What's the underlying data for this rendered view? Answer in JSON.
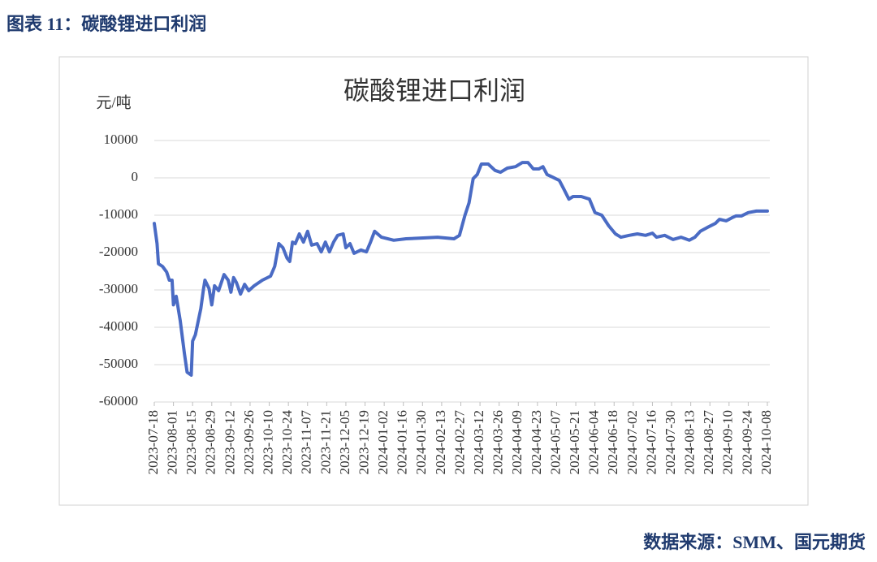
{
  "header": {
    "title": "图表 11：碳酸锂进口利润"
  },
  "chart_data": {
    "type": "line",
    "title": "碳酸锂进口利润",
    "y_label": "元/吨",
    "ylim": [
      -60000,
      10000
    ],
    "yticks": [
      10000,
      0,
      -10000,
      -20000,
      -30000,
      -40000,
      -50000,
      -60000
    ],
    "grid": true,
    "xlim": [
      "2023-07-18",
      "2024-10-08"
    ],
    "xticks": [
      "2023-07-18",
      "2023-08-01",
      "2023-08-15",
      "2023-08-29",
      "2023-09-12",
      "2023-09-26",
      "2023-10-10",
      "2023-10-24",
      "2023-11-07",
      "2023-11-21",
      "2023-12-05",
      "2023-12-19",
      "2024-01-02",
      "2024-01-16",
      "2024-01-30",
      "2024-02-13",
      "2024-02-27",
      "2024-03-12",
      "2024-03-26",
      "2024-04-09",
      "2024-04-23",
      "2024-05-07",
      "2024-05-21",
      "2024-06-04",
      "2024-06-18",
      "2024-07-02",
      "2024-07-16",
      "2024-07-30",
      "2024-08-13",
      "2024-08-27",
      "2024-09-10",
      "2024-09-24",
      "2024-10-08"
    ],
    "x": [
      "2023-07-18",
      "2023-07-20",
      "2023-07-21",
      "2023-07-24",
      "2023-07-27",
      "2023-07-29",
      "2023-07-31",
      "2023-08-01",
      "2023-08-03",
      "2023-08-06",
      "2023-08-09",
      "2023-08-11",
      "2023-08-14",
      "2023-08-15",
      "2023-08-17",
      "2023-08-21",
      "2023-08-23",
      "2023-08-24",
      "2023-08-27",
      "2023-08-29",
      "2023-08-31",
      "2023-09-03",
      "2023-09-05",
      "2023-09-07",
      "2023-09-10",
      "2023-09-12",
      "2023-09-14",
      "2023-09-16",
      "2023-09-19",
      "2023-09-22",
      "2023-09-25",
      "2023-09-29",
      "2023-10-05",
      "2023-10-11",
      "2023-10-14",
      "2023-10-17",
      "2023-10-20",
      "2023-10-23",
      "2023-10-25",
      "2023-10-27",
      "2023-10-29",
      "2023-11-01",
      "2023-11-04",
      "2023-11-07",
      "2023-11-10",
      "2023-11-14",
      "2023-11-17",
      "2023-11-20",
      "2023-11-23",
      "2023-11-26",
      "2023-11-29",
      "2023-12-03",
      "2023-12-05",
      "2023-12-08",
      "2023-12-11",
      "2023-12-16",
      "2023-12-20",
      "2023-12-23",
      "2023-12-26",
      "2023-12-31",
      "2024-01-09",
      "2024-01-18",
      "2024-01-29",
      "2024-02-10",
      "2024-02-22",
      "2024-02-26",
      "2024-03-01",
      "2024-03-04",
      "2024-03-07",
      "2024-03-10",
      "2024-03-13",
      "2024-03-18",
      "2024-03-23",
      "2024-03-27",
      "2024-04-01",
      "2024-04-07",
      "2024-04-12",
      "2024-04-16",
      "2024-04-20",
      "2024-04-24",
      "2024-04-27",
      "2024-04-30",
      "2024-05-04",
      "2024-05-09",
      "2024-05-12",
      "2024-05-16",
      "2024-05-19",
      "2024-05-25",
      "2024-05-31",
      "2024-06-04",
      "2024-06-09",
      "2024-06-14",
      "2024-06-19",
      "2024-06-23",
      "2024-06-29",
      "2024-07-05",
      "2024-07-11",
      "2024-07-16",
      "2024-07-19",
      "2024-07-25",
      "2024-07-31",
      "2024-08-06",
      "2024-08-12",
      "2024-08-16",
      "2024-08-20",
      "2024-08-25",
      "2024-08-31",
      "2024-09-03",
      "2024-09-08",
      "2024-09-12",
      "2024-09-15",
      "2024-09-19",
      "2024-09-24",
      "2024-09-30",
      "2024-10-08"
    ],
    "series": [
      {
        "color": "#4a6bc4",
        "values": [
          -12200,
          -17600,
          -23000,
          -23700,
          -25200,
          -27400,
          -27400,
          -34000,
          -31700,
          -38300,
          -47000,
          -52000,
          -52800,
          -43700,
          -42000,
          -35000,
          -29600,
          -27400,
          -29600,
          -34000,
          -28900,
          -30200,
          -28000,
          -25900,
          -27400,
          -30600,
          -26700,
          -28000,
          -31100,
          -28500,
          -30200,
          -28900,
          -27400,
          -26300,
          -23700,
          -17600,
          -18700,
          -21500,
          -22400,
          -17200,
          -17600,
          -15000,
          -17200,
          -14300,
          -18000,
          -17600,
          -19800,
          -17200,
          -19800,
          -17200,
          -15400,
          -15000,
          -18700,
          -17600,
          -20200,
          -19300,
          -19800,
          -17200,
          -14300,
          -15900,
          -16700,
          -16300,
          -16100,
          -15900,
          -16300,
          -15400,
          -10000,
          -6700,
          -200,
          900,
          3700,
          3700,
          2000,
          1500,
          2600,
          3000,
          4100,
          4100,
          2400,
          2400,
          3000,
          900,
          200,
          -700,
          -2800,
          -5700,
          -5000,
          -5000,
          -5700,
          -9300,
          -10000,
          -12800,
          -15000,
          -15900,
          -15400,
          -15000,
          -15400,
          -14800,
          -15900,
          -15400,
          -16500,
          -15900,
          -16700,
          -15900,
          -14300,
          -13300,
          -12200,
          -11100,
          -11500,
          -10700,
          -10200,
          -10200,
          -9300,
          -8900,
          -8900
        ]
      }
    ]
  },
  "footer": {
    "source": "数据来源：SMM、国元期货"
  }
}
